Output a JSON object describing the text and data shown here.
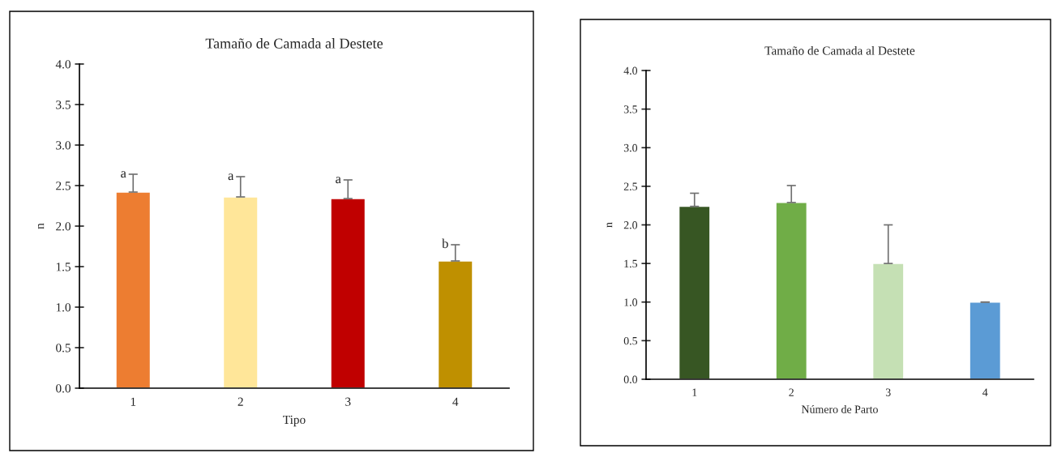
{
  "chart_data": [
    {
      "type": "bar",
      "title": "Tamaño de Camada al Destete",
      "xlabel": "Tipo",
      "ylabel": "n",
      "categories": [
        "1",
        "2",
        "3",
        "4"
      ],
      "values": [
        2.42,
        2.36,
        2.34,
        1.57
      ],
      "colors": [
        "#ed7d31",
        "#ffe699",
        "#c00000",
        "#bf9000"
      ],
      "errors": [
        [
          2.42,
          2.64
        ],
        [
          2.36,
          2.61
        ],
        [
          2.34,
          2.57
        ],
        [
          1.57,
          1.77
        ]
      ],
      "ylim": [
        0,
        4
      ],
      "yticks": [
        {
          "value": 0,
          "label": "0.0"
        },
        {
          "value": 0.5,
          "label": "0.5"
        },
        {
          "value": 1,
          "label": "1.0"
        },
        {
          "value": 1.5,
          "label": "1.5"
        },
        {
          "value": 2,
          "label": "2.0"
        },
        {
          "value": 2.5,
          "label": "2.5"
        },
        {
          "value": 3,
          "label": "3.0"
        },
        {
          "value": 3.5,
          "label": "3.5"
        },
        {
          "value": 4,
          "label": "4.0"
        }
      ],
      "annotations": [
        {
          "text": "a",
          "x": "1",
          "y": 2.64
        },
        {
          "text": "a",
          "x": "2",
          "y": 2.61
        },
        {
          "text": "a",
          "x": "3",
          "y": 2.57
        },
        {
          "text": "b",
          "x": "4",
          "y": 1.77
        }
      ]
    },
    {
      "type": "bar",
      "title": "Tamaño de Camada al Destete",
      "xlabel": "Número de Parto",
      "ylabel": "n",
      "categories": [
        "1",
        "2",
        "3",
        "4"
      ],
      "values": [
        2.24,
        2.29,
        1.5,
        1.0
      ],
      "colors": [
        "#375623",
        "#70ad47",
        "#c5e0b4",
        "#5b9bd5"
      ],
      "errors": [
        [
          2.24,
          2.41
        ],
        [
          2.29,
          2.51
        ],
        [
          1.5,
          2.0
        ],
        [
          1.0,
          1.0
        ]
      ],
      "ylim": [
        0,
        4
      ],
      "yticks": [
        {
          "value": 0,
          "label": "0.0"
        },
        {
          "value": 0.5,
          "label": "0.5"
        },
        {
          "value": 1,
          "label": "1.0"
        },
        {
          "value": 1.5,
          "label": "1.5"
        },
        {
          "value": 2,
          "label": "2.0"
        },
        {
          "value": 2.5,
          "label": "2.5"
        },
        {
          "value": 3,
          "label": "3.0"
        },
        {
          "value": 3.5,
          "label": "3.5"
        },
        {
          "value": 4,
          "label": "4.0"
        }
      ]
    }
  ]
}
